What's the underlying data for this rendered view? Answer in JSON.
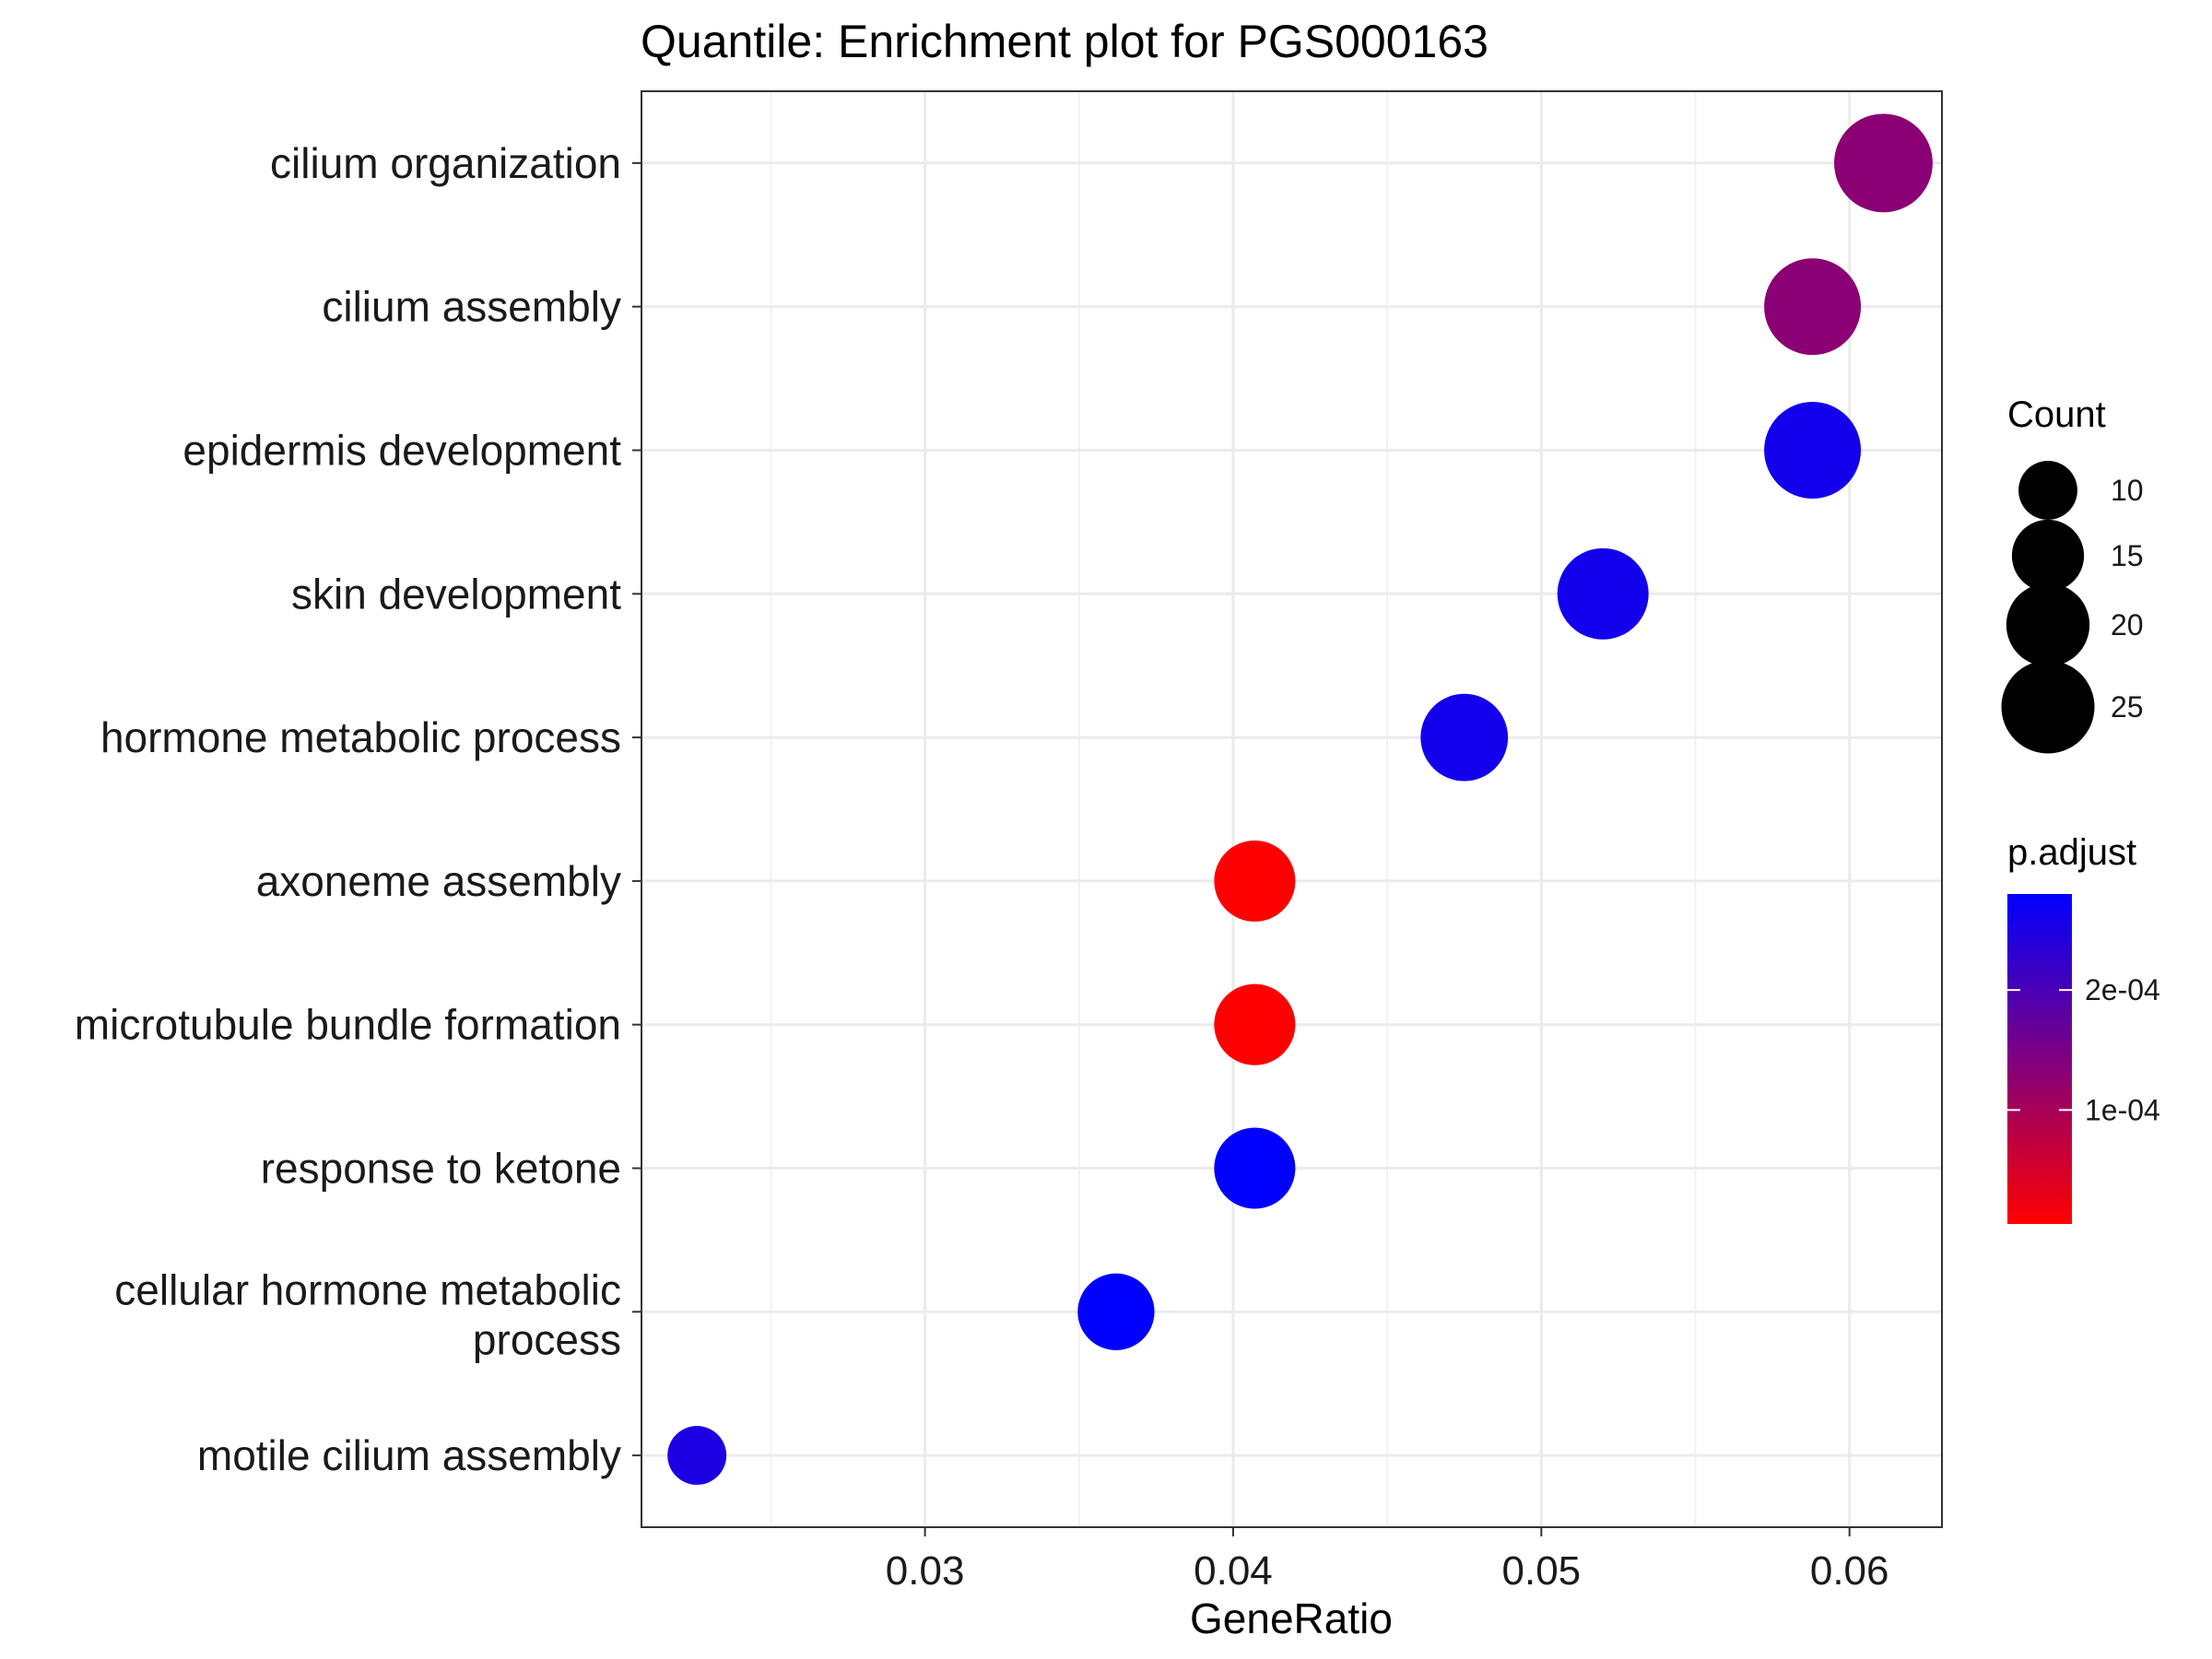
{
  "chart_data": {
    "type": "scatter",
    "title": "Quantile: Enrichment plot for PGS000163",
    "xlabel": "GeneRatio",
    "ylabel": "",
    "xlim": [
      0.0208,
      0.063
    ],
    "xticks": [
      "0.03",
      "0.04",
      "0.05",
      "0.06"
    ],
    "grid": true,
    "categories": [
      "cilium organization",
      "cilium assembly",
      "epidermis development",
      "skin development",
      "hormone metabolic process",
      "axoneme assembly",
      "microtubule bundle formation",
      "response to ketone",
      "cellular hormone metabolic process",
      "motile cilium assembly"
    ],
    "points": [
      {
        "term": "cilium organization",
        "gene_ratio": 0.0611,
        "count": 28,
        "p_adjust": 0.00013
      },
      {
        "term": "cilium assembly",
        "gene_ratio": 0.0588,
        "count": 27,
        "p_adjust": 0.00013
      },
      {
        "term": "epidermis development",
        "gene_ratio": 0.0588,
        "count": 27,
        "p_adjust": 0.00026
      },
      {
        "term": "skin development",
        "gene_ratio": 0.052,
        "count": 24,
        "p_adjust": 0.00026
      },
      {
        "term": "hormone metabolic process",
        "gene_ratio": 0.0475,
        "count": 22,
        "p_adjust": 0.00026
      },
      {
        "term": "axoneme assembly",
        "gene_ratio": 0.0407,
        "count": 19,
        "p_adjust": 5e-06
      },
      {
        "term": "microtubule bundle formation",
        "gene_ratio": 0.0407,
        "count": 19,
        "p_adjust": 5e-06
      },
      {
        "term": "response to ketone",
        "gene_ratio": 0.0407,
        "count": 19,
        "p_adjust": 0.00028
      },
      {
        "term": "cellular hormone metabolic process",
        "gene_ratio": 0.0362,
        "count": 17,
        "p_adjust": 0.00028
      },
      {
        "term": "motile cilium assembly",
        "gene_ratio": 0.0226,
        "count": 10,
        "p_adjust": 0.00025
      }
    ],
    "size_legend": {
      "title": "Count",
      "labels": [
        "10",
        "15",
        "20",
        "25"
      ],
      "values": [
        10,
        15,
        20,
        25
      ]
    },
    "color_legend": {
      "title": "p.adjust",
      "labels": [
        "2e-04",
        "1e-04"
      ],
      "values": [
        0.0002,
        0.0001
      ],
      "range": [
        5e-06,
        0.00028
      ],
      "low_color": "#FF0000",
      "high_color": "#0000FF"
    }
  }
}
